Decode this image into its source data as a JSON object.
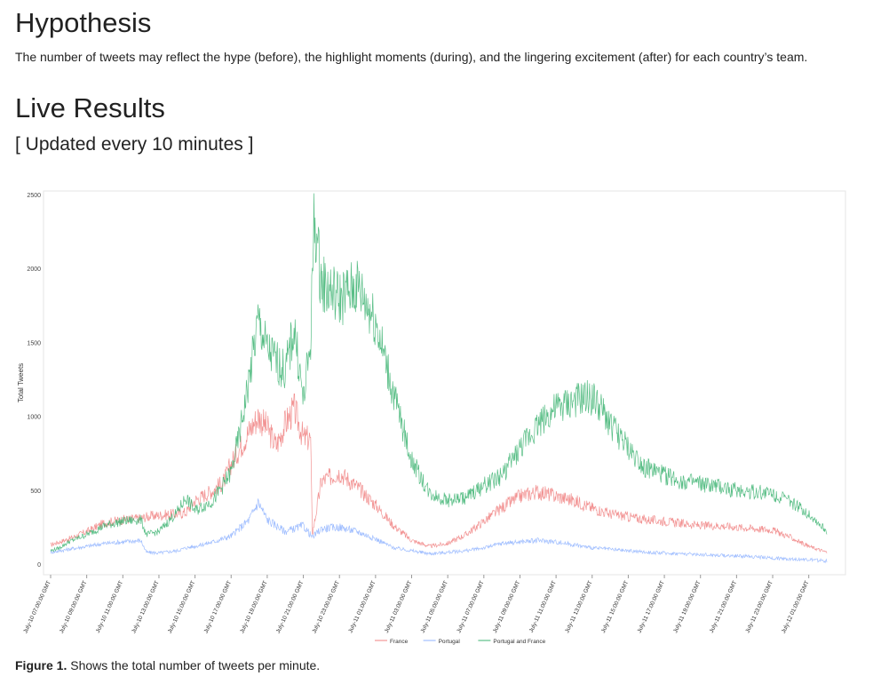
{
  "hypothesis": {
    "title": "Hypothesis",
    "text": "The number of tweets may reflect the hype (before), the highlight moments (during), and the lingering excitement (after) for each country’s team."
  },
  "live": {
    "title": "Live Results",
    "subtitle": "[ Updated every 10 minutes ]"
  },
  "caption": {
    "label": "Figure 1.",
    "text": "Shows the total number of tweets per minute."
  },
  "chart_data": {
    "type": "line",
    "ylabel": "Total Tweets",
    "xlabel": "",
    "ylim": [
      0,
      2500
    ],
    "y_ticks": [
      0,
      500,
      1000,
      1500,
      2000,
      2500
    ],
    "x_range_hours": [
      0,
      43
    ],
    "x_ticks": [
      "July-10 07:00:00 GMT",
      "July-10 09:00:00 GMT",
      "July-10 11:00:00 GMT",
      "July-10 13:00:00 GMT",
      "July-10 15:00:00 GMT",
      "July-10 17:00:00 GMT",
      "July-10 19:00:00 GMT",
      "July-10 21:00:00 GMT",
      "July-10 23:00:00 GMT",
      "July-11 01:00:00 GMT",
      "July-11 03:00:00 GMT",
      "July-11 05:00:00 GMT",
      "July-11 07:00:00 GMT",
      "July-11 09:00:00 GMT",
      "July-11 11:00:00 GMT",
      "July-11 13:00:00 GMT",
      "July-11 15:00:00 GMT",
      "July-11 17:00:00 GMT",
      "July-11 19:00:00 GMT",
      "July-11 21:00:00 GMT",
      "July-11 23:00:00 GMT",
      "July-12 01:00:00 GMT"
    ],
    "legend_position": "bottom",
    "series": [
      {
        "name": "France",
        "color": "#f08080",
        "x": [
          0,
          0.5,
          1,
          2,
          3,
          4,
          5,
          5.3,
          6,
          7,
          7.5,
          8,
          9,
          9.6,
          10,
          11,
          11.5,
          12,
          12.5,
          13,
          13.5,
          14,
          14.4,
          14.5,
          15,
          16,
          17,
          18,
          19,
          20,
          21,
          22,
          23,
          24,
          25,
          26,
          27,
          28,
          29,
          30,
          31,
          32,
          33,
          34,
          35,
          36,
          37,
          38,
          39,
          40,
          41,
          42,
          43
        ],
        "y": [
          130,
          150,
          170,
          220,
          280,
          300,
          310,
          320,
          330,
          340,
          350,
          430,
          500,
          560,
          680,
          900,
          1000,
          920,
          800,
          950,
          1050,
          850,
          850,
          200,
          560,
          620,
          520,
          400,
          260,
          160,
          120,
          140,
          200,
          290,
          380,
          460,
          490,
          460,
          430,
          380,
          340,
          320,
          300,
          290,
          275,
          260,
          260,
          250,
          240,
          230,
          180,
          120,
          80
        ]
      },
      {
        "name": "Portugal",
        "color": "#8fb3ff",
        "x": [
          0,
          1,
          2,
          3,
          4,
          5,
          5.3,
          6,
          7,
          7.5,
          8,
          9,
          10,
          11,
          11.5,
          12,
          13,
          14,
          14.5,
          15,
          16,
          17,
          18,
          19,
          20,
          21,
          22,
          23,
          24,
          25,
          26,
          27,
          28,
          29,
          30,
          31,
          32,
          33,
          34,
          35,
          36,
          37,
          38,
          39,
          40,
          41,
          42,
          43
        ],
        "y": [
          80,
          100,
          120,
          140,
          150,
          160,
          80,
          75,
          90,
          110,
          120,
          150,
          190,
          300,
          420,
          300,
          220,
          260,
          180,
          240,
          250,
          220,
          170,
          110,
          90,
          70,
          80,
          90,
          110,
          140,
          150,
          160,
          150,
          130,
          110,
          100,
          90,
          80,
          75,
          70,
          65,
          60,
          55,
          50,
          40,
          35,
          30,
          20
        ]
      },
      {
        "name": "Portugal and France",
        "color": "#3cb371",
        "x": [
          0,
          0.5,
          1,
          2,
          3,
          4,
          5,
          5.3,
          6,
          7,
          7.5,
          8,
          9,
          10,
          10.5,
          11,
          11.5,
          12,
          13,
          13.5,
          14,
          14.4,
          14.6,
          15,
          16,
          17,
          18,
          19,
          20,
          21,
          22,
          23,
          24,
          25,
          26,
          27,
          28,
          29,
          30,
          31,
          32,
          33,
          34,
          35,
          36,
          37,
          38,
          39,
          40,
          41,
          42,
          43
        ],
        "y": [
          90,
          110,
          150,
          200,
          260,
          290,
          300,
          200,
          220,
          350,
          450,
          360,
          430,
          620,
          900,
          1250,
          1650,
          1450,
          1300,
          1600,
          1100,
          1500,
          2350,
          1900,
          1800,
          1880,
          1650,
          1150,
          700,
          480,
          430,
          450,
          530,
          600,
          780,
          950,
          1050,
          1100,
          1130,
          950,
          780,
          650,
          600,
          560,
          540,
          520,
          500,
          490,
          480,
          420,
          340,
          220
        ]
      }
    ]
  }
}
